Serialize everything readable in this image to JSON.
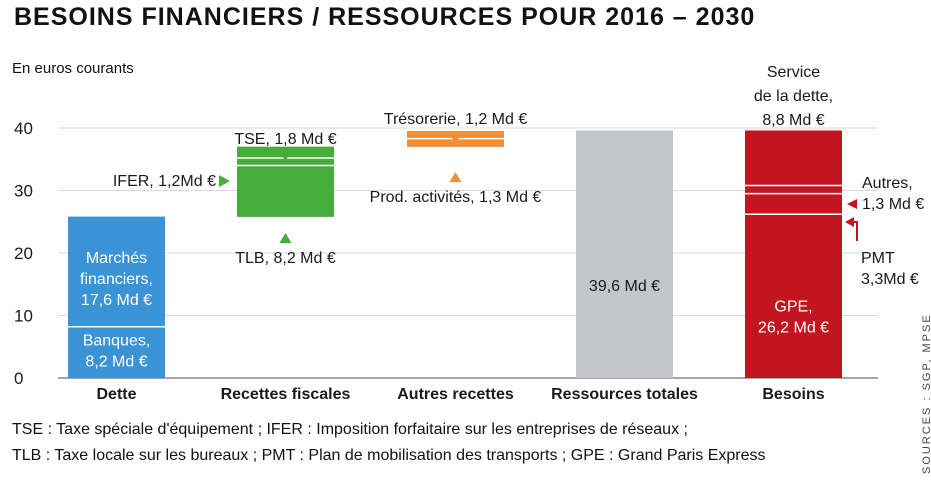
{
  "title": "BESOINS FINANCIERS / RESSOURCES POUR 2016 – 2030",
  "unit_label": "En euros courants",
  "footnotes": [
    "TSE : Taxe spéciale d'équipement ; IFER : Imposition forfaitaire sur les entreprises de réseaux ;",
    "TLB : Taxe locale sur les bureaux ; PMT : Plan de mobilisation des transports ; GPE : Grand Paris Express"
  ],
  "source": "SOURCES : SGP, MPSE",
  "colors": {
    "blue": "#3a93d4",
    "green": "#46ac3c",
    "orange": "#f08f3a",
    "grey": "#c3c6cd",
    "red": "#c2151f",
    "grid": "#d9d9d9",
    "axis": "#888888",
    "label": "#1a1a1a"
  },
  "chart_data": {
    "type": "bar",
    "subtype": "waterfall",
    "ylim": [
      0,
      40
    ],
    "yticks": [
      0,
      10,
      20,
      30,
      40
    ],
    "grid": true,
    "categories": [
      "Dette",
      "Recettes fiscales",
      "Autres recettes",
      "Ressources totales",
      "Besoins"
    ],
    "stacks": [
      {
        "category": "Dette",
        "color": "blue",
        "segments": [
          {
            "name": "Banques",
            "base": 0,
            "value": 8.2,
            "label": [
              "Banques,",
              "8,2 Md €"
            ]
          },
          {
            "name": "Marchés financiers",
            "base": 8.2,
            "value": 17.6,
            "label": [
              "Marchés",
              "financiers,",
              "17,6 Md €"
            ]
          }
        ]
      },
      {
        "category": "Recettes fiscales",
        "color": "green",
        "segments": [
          {
            "name": "TLB",
            "base": 25.8,
            "value": 8.2,
            "label_ref": 0
          },
          {
            "name": "IFER",
            "base": 34.0,
            "value": 1.2,
            "label_ref": 1
          },
          {
            "name": "TSE",
            "base": 35.2,
            "value": 1.8,
            "label_ref": 2
          }
        ]
      },
      {
        "category": "Autres recettes",
        "color": "orange",
        "segments": [
          {
            "name": "Prod. activités",
            "base": 37.0,
            "value": 1.3,
            "label_ref": 3
          },
          {
            "name": "Trésorerie",
            "base": 38.3,
            "value": 1.2,
            "label_ref": 4
          }
        ]
      },
      {
        "category": "Ressources totales",
        "color": "grey",
        "segments": [
          {
            "name": "Ressources totales",
            "base": 0,
            "value": 39.6,
            "label": [
              "39,6 Md €"
            ]
          }
        ]
      },
      {
        "category": "Besoins",
        "color": "red",
        "segments": [
          {
            "name": "GPE",
            "base": 0,
            "value": 26.2,
            "label": [
              "GPE,",
              "26,2 Md €"
            ]
          },
          {
            "name": "PMT",
            "base": 26.2,
            "value": 3.3,
            "label_ref": 5
          },
          {
            "name": "Autres",
            "base": 29.5,
            "value": 1.3,
            "label_ref": 6
          },
          {
            "name": "Service de la dette",
            "base": 30.8,
            "value": 8.8,
            "label_ref": 7
          }
        ]
      }
    ],
    "annotations": [
      {
        "lines": [
          "TLB, 8,2 Md €"
        ],
        "marker": "up"
      },
      {
        "lines": [
          "IFER, 1,2Md €"
        ],
        "marker": "right"
      },
      {
        "lines": [
          "TSE, 1,8 Md €"
        ],
        "marker": "down"
      },
      {
        "lines": [
          "Prod. activités, 1,3 Md €"
        ],
        "marker": "up"
      },
      {
        "lines": [
          "Trésorerie, 1,2 Md €"
        ],
        "marker": "down"
      },
      {
        "lines": [
          "PMT",
          "3,3Md €"
        ],
        "marker": "bracket"
      },
      {
        "lines": [
          "Autres,",
          "1,3 Md €"
        ],
        "marker": "left"
      },
      {
        "lines": [
          "Service",
          "de la dette,",
          "8,8 Md €"
        ],
        "marker": "down"
      }
    ]
  }
}
